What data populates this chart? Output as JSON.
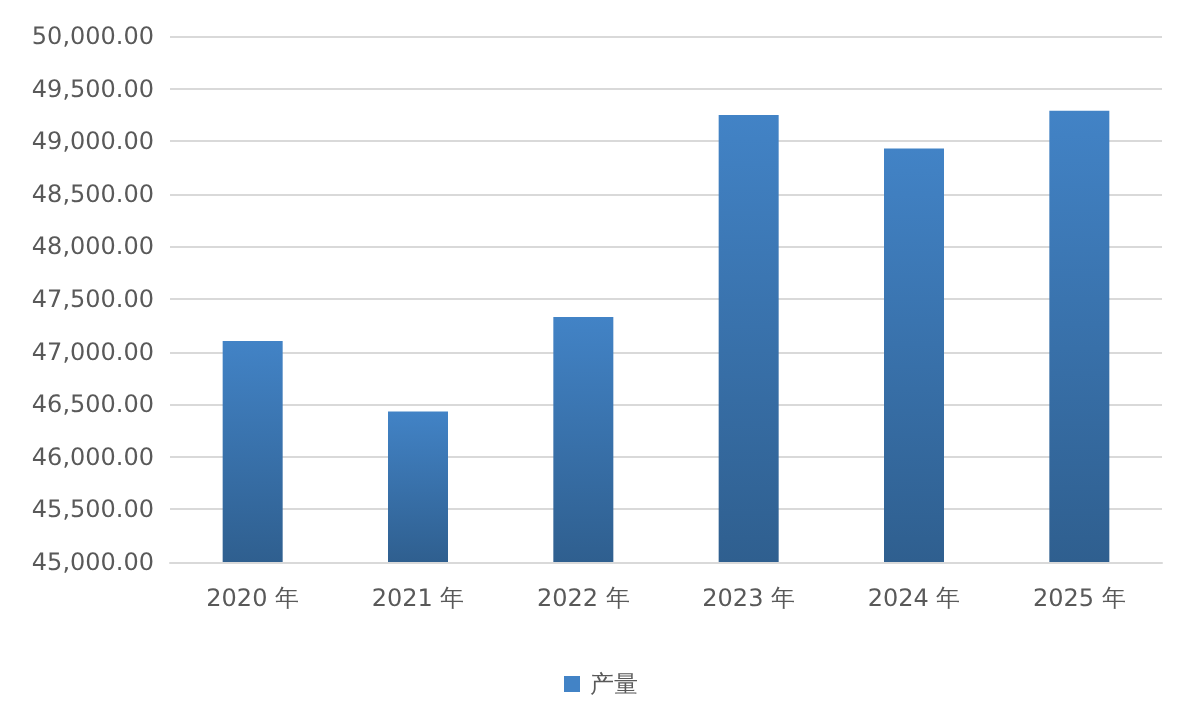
{
  "chart_data": {
    "type": "bar",
    "categories": [
      "2020 年",
      "2021 年",
      "2022 年",
      "2023 年",
      "2024 年",
      "2025 年"
    ],
    "series": [
      {
        "name": "产量",
        "color": "#4283c6",
        "values": [
          47100,
          46430,
          47330,
          49250,
          48930,
          49290
        ]
      }
    ],
    "ylim": [
      45000,
      50000
    ],
    "yticks": [
      {
        "value": 45000,
        "label": "45,000.00"
      },
      {
        "value": 45500,
        "label": "45,500.00"
      },
      {
        "value": 46000,
        "label": "46,000.00"
      },
      {
        "value": 46500,
        "label": "46,500.00"
      },
      {
        "value": 47000,
        "label": "47,000.00"
      },
      {
        "value": 47500,
        "label": "47,500.00"
      },
      {
        "value": 48000,
        "label": "48,000.00"
      },
      {
        "value": 48500,
        "label": "48,500.00"
      },
      {
        "value": 49000,
        "label": "49,000.00"
      },
      {
        "value": 49500,
        "label": "49,500.00"
      },
      {
        "value": 50000,
        "label": "50,000.00"
      }
    ],
    "grid": "y",
    "legend": "bottom"
  }
}
